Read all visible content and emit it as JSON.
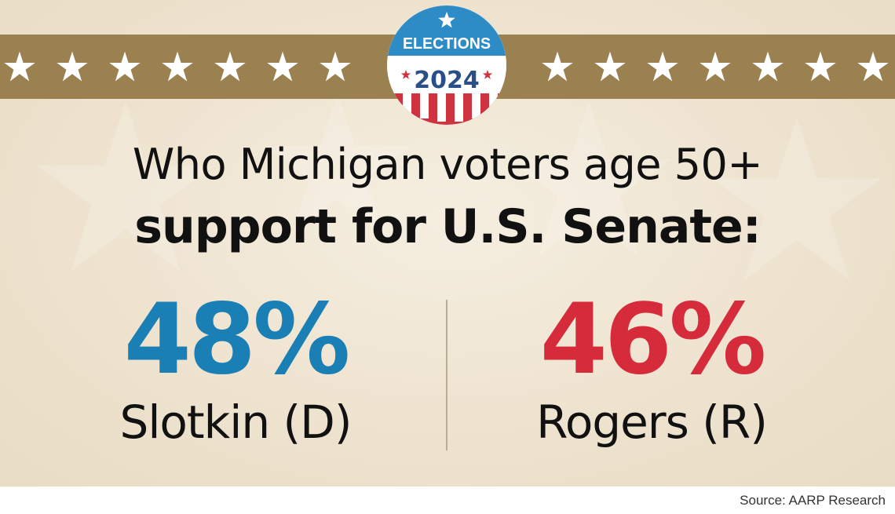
{
  "badge": {
    "line1": "ELECTIONS",
    "line2": "2024"
  },
  "headline": {
    "line1": "Who Michigan voters age 50+",
    "line2": "support for U.S. Senate:"
  },
  "results": [
    {
      "percent": "48%",
      "candidate": "Slotkin (D)",
      "color": "#1a7fb4"
    },
    {
      "percent": "46%",
      "candidate": "Rogers (R)",
      "color": "#d62b3a"
    }
  ],
  "source": "Source: AARP Research",
  "colors": {
    "band": "#9b8150",
    "background": "#f1e8d6",
    "badge_navy": "#2a4f86",
    "badge_red": "#cf3340",
    "badge_blue": "#2d8bc6"
  }
}
